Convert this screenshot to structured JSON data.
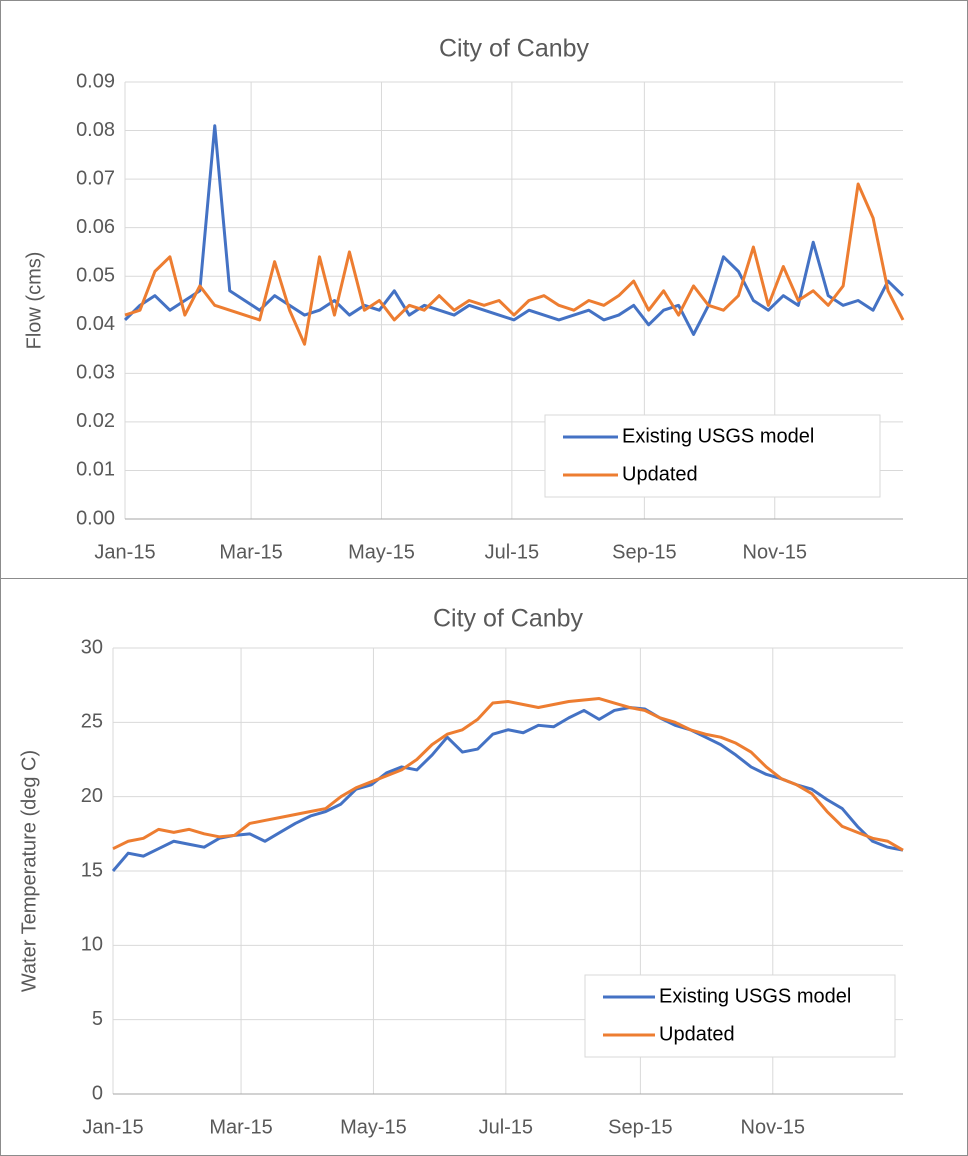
{
  "chart_data": [
    {
      "type": "line",
      "title": "City of Canby",
      "y_label": "Flow (cms)",
      "x": [
        0,
        7,
        14,
        21,
        28,
        35,
        42,
        49,
        56,
        63,
        70,
        77,
        84,
        91,
        98,
        105,
        112,
        119,
        126,
        133,
        140,
        147,
        154,
        161,
        168,
        175,
        182,
        189,
        196,
        203,
        210,
        217,
        224,
        231,
        238,
        245,
        252,
        259,
        266,
        273,
        280,
        287,
        294,
        301,
        308,
        315,
        322,
        329,
        336,
        343,
        350,
        357,
        364
      ],
      "xlim": [
        0,
        364
      ],
      "xticks": [
        {
          "value": 0,
          "label": "Jan-15"
        },
        {
          "value": 59,
          "label": "Mar-15"
        },
        {
          "value": 120,
          "label": "May-15"
        },
        {
          "value": 181,
          "label": "Jul-15"
        },
        {
          "value": 243,
          "label": "Sep-15"
        },
        {
          "value": 304,
          "label": "Nov-15"
        }
      ],
      "ylim": [
        0,
        0.09
      ],
      "yticks": [
        {
          "value": 0,
          "label": "0.00"
        },
        0.01,
        0.02,
        0.03,
        0.04,
        0.05,
        0.06,
        0.07,
        0.08,
        0.09
      ],
      "grid": true,
      "legend": "lower right",
      "series": [
        {
          "name": "Existing USGS model",
          "color": "#4472c4",
          "values": [
            0.041,
            0.044,
            0.046,
            0.043,
            0.045,
            0.047,
            0.081,
            0.047,
            0.045,
            0.043,
            0.046,
            0.044,
            0.042,
            0.043,
            0.045,
            0.042,
            0.044,
            0.043,
            0.047,
            0.042,
            0.044,
            0.043,
            0.042,
            0.044,
            0.043,
            0.042,
            0.041,
            0.043,
            0.042,
            0.041,
            0.042,
            0.043,
            0.041,
            0.042,
            0.044,
            0.04,
            0.043,
            0.044,
            0.038,
            0.044,
            0.054,
            0.051,
            0.045,
            0.043,
            0.046,
            0.044,
            0.057,
            0.046,
            0.044,
            0.045,
            0.043,
            0.049,
            0.046
          ]
        },
        {
          "name": "Updated",
          "color": "#ed7d31",
          "values": [
            0.042,
            0.043,
            0.051,
            0.054,
            0.042,
            0.048,
            0.044,
            0.043,
            0.042,
            0.041,
            0.053,
            0.043,
            0.036,
            0.054,
            0.042,
            0.055,
            0.043,
            0.045,
            0.041,
            0.044,
            0.043,
            0.046,
            0.043,
            0.045,
            0.044,
            0.045,
            0.042,
            0.045,
            0.046,
            0.044,
            0.043,
            0.045,
            0.044,
            0.046,
            0.049,
            0.043,
            0.047,
            0.042,
            0.048,
            0.044,
            0.043,
            0.046,
            0.056,
            0.044,
            0.052,
            0.045,
            0.047,
            0.044,
            0.048,
            0.069,
            0.062,
            0.047,
            0.041
          ]
        }
      ]
    },
    {
      "type": "line",
      "title": "City of Canby",
      "y_label": "Water Temperature (deg C)",
      "x": [
        0,
        7,
        14,
        21,
        28,
        35,
        42,
        49,
        56,
        63,
        70,
        77,
        84,
        91,
        98,
        105,
        112,
        119,
        126,
        133,
        140,
        147,
        154,
        161,
        168,
        175,
        182,
        189,
        196,
        203,
        210,
        217,
        224,
        231,
        238,
        245,
        252,
        259,
        266,
        273,
        280,
        287,
        294,
        301,
        308,
        315,
        322,
        329,
        336,
        343,
        350,
        357,
        364
      ],
      "xlim": [
        0,
        364
      ],
      "xticks": [
        {
          "value": 0,
          "label": "Jan-15"
        },
        {
          "value": 59,
          "label": "Mar-15"
        },
        {
          "value": 120,
          "label": "May-15"
        },
        {
          "value": 181,
          "label": "Jul-15"
        },
        {
          "value": 243,
          "label": "Sep-15"
        },
        {
          "value": 304,
          "label": "Nov-15"
        }
      ],
      "ylim": [
        0,
        30
      ],
      "yticks": [
        0,
        5,
        10,
        15,
        20,
        25,
        30
      ],
      "grid": true,
      "legend": "lower right",
      "series": [
        {
          "name": "Existing USGS model",
          "color": "#4472c4",
          "values": [
            15.0,
            16.2,
            16.0,
            16.5,
            17.0,
            16.8,
            16.6,
            17.2,
            17.4,
            17.5,
            17.0,
            17.6,
            18.2,
            18.7,
            19.0,
            19.5,
            20.5,
            20.8,
            21.6,
            22.0,
            21.8,
            22.8,
            24.0,
            23.0,
            23.2,
            24.2,
            24.5,
            24.3,
            24.8,
            24.7,
            25.3,
            25.8,
            25.2,
            25.8,
            26.0,
            25.9,
            25.3,
            24.8,
            24.5,
            24.0,
            23.5,
            22.8,
            22.0,
            21.5,
            21.2,
            20.8,
            20.5,
            19.8,
            19.2,
            18.0,
            17.0,
            16.6,
            16.4
          ]
        },
        {
          "name": "Updated",
          "color": "#ed7d31",
          "values": [
            16.5,
            17.0,
            17.2,
            17.8,
            17.6,
            17.8,
            17.5,
            17.3,
            17.4,
            18.2,
            18.4,
            18.6,
            18.8,
            19.0,
            19.2,
            20.0,
            20.6,
            21.0,
            21.4,
            21.8,
            22.5,
            23.5,
            24.2,
            24.5,
            25.2,
            26.3,
            26.4,
            26.2,
            26.0,
            26.2,
            26.4,
            26.5,
            26.6,
            26.3,
            26.0,
            25.8,
            25.3,
            25.0,
            24.5,
            24.2,
            24.0,
            23.6,
            23.0,
            22.0,
            21.2,
            20.8,
            20.2,
            19.0,
            18.0,
            17.6,
            17.2,
            17.0,
            16.4
          ]
        }
      ]
    }
  ]
}
